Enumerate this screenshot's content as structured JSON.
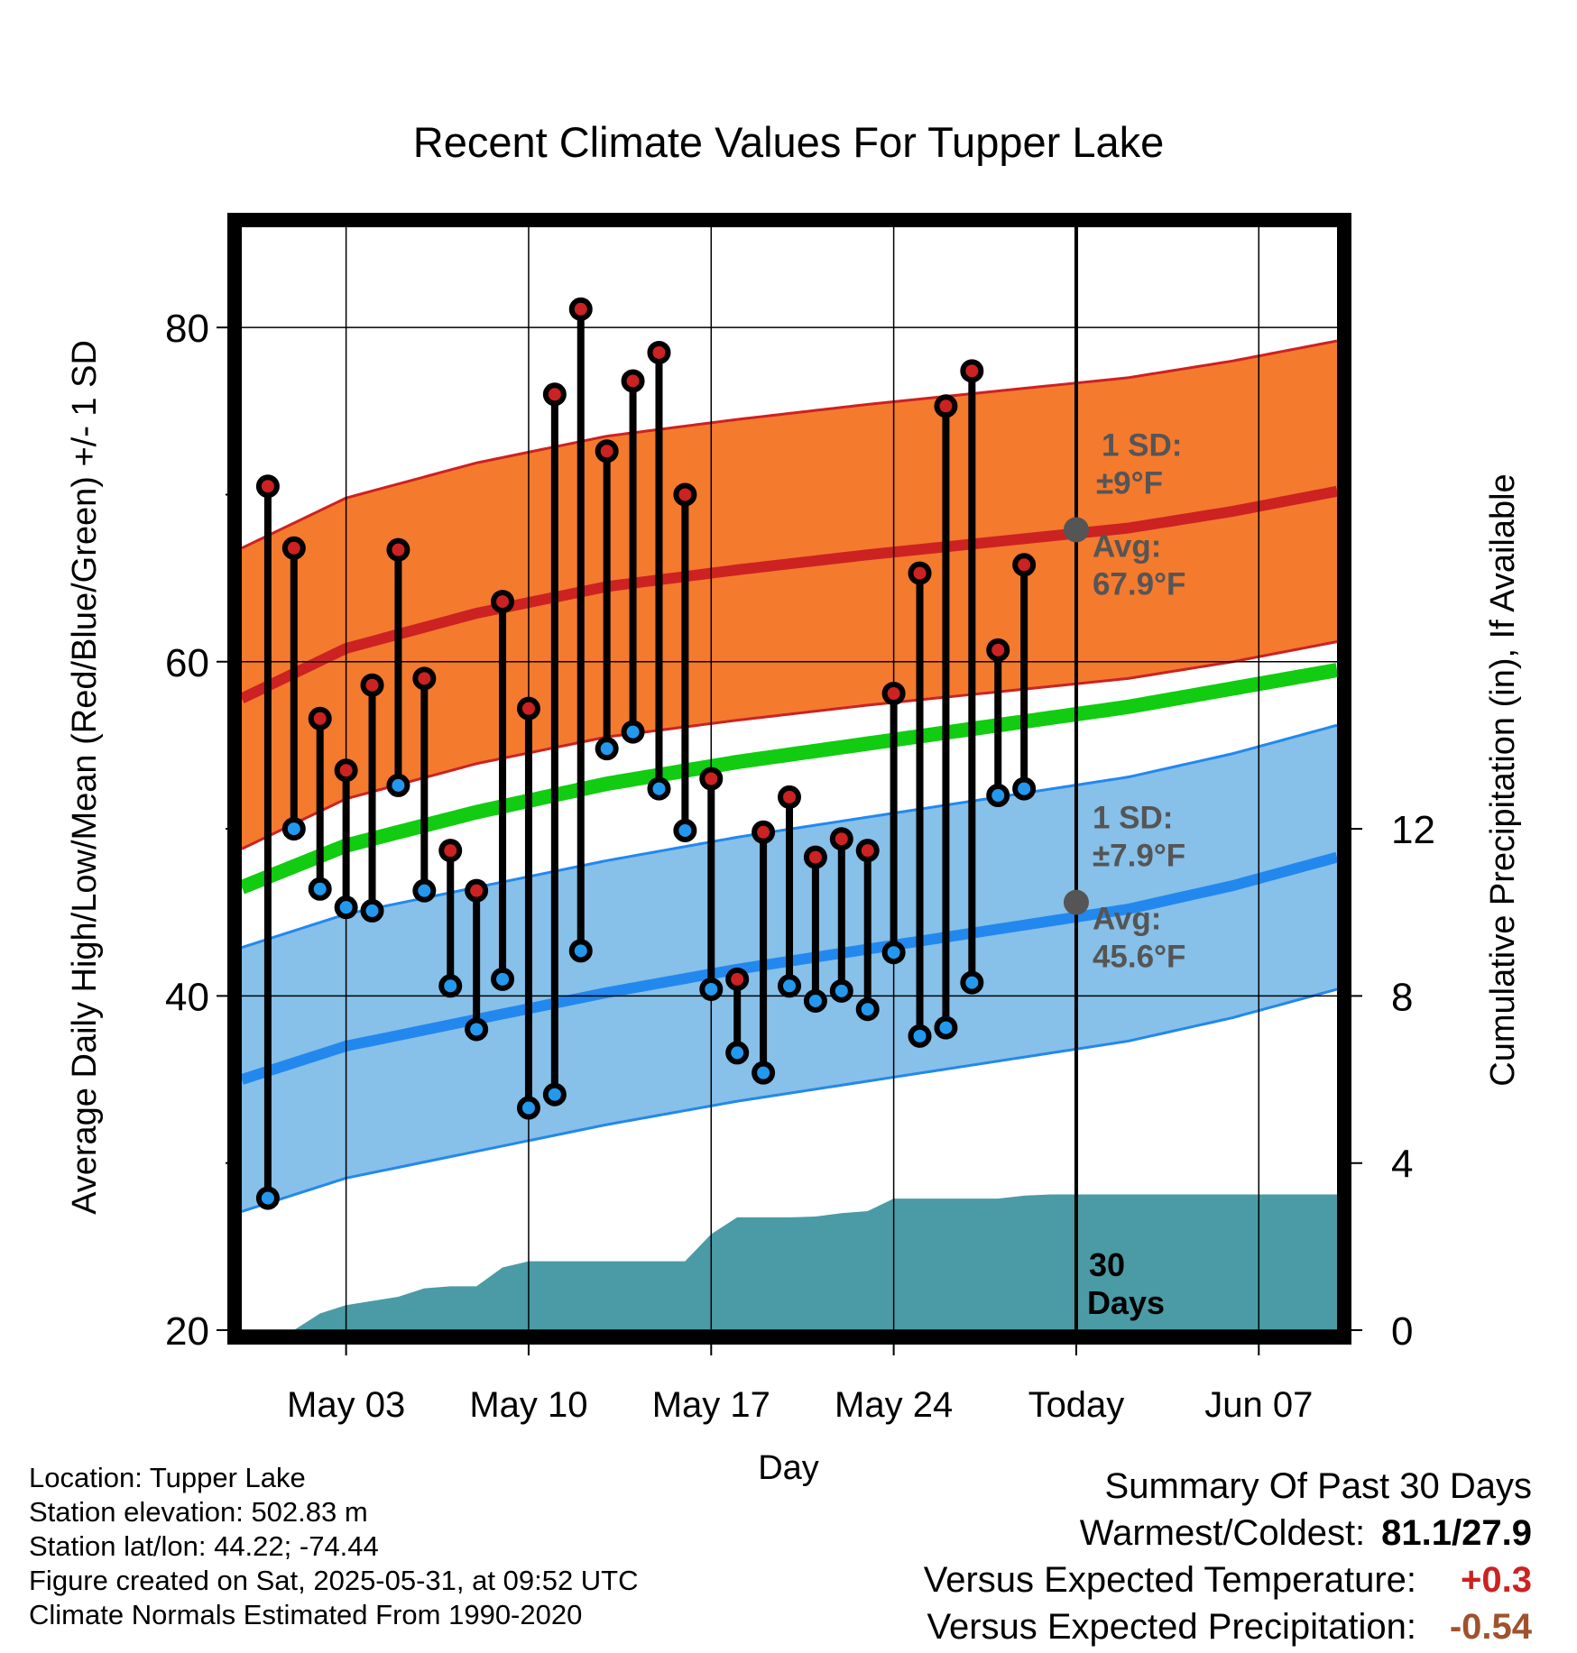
{
  "chart_data": {
    "type": "line",
    "title": "Recent Climate Values For Tupper Lake",
    "xlabel": "Day",
    "ylabel": "Average Daily High/Low/Mean (Red/Blue/Green) +/- 1 SD",
    "y2label": "Cumulative Precipitation (in), If Available",
    "ylim": [
      20,
      86
    ],
    "y2lim": [
      0,
      26.4
    ],
    "yticks": [
      20,
      40,
      60,
      80
    ],
    "y2ticks": [
      0,
      4,
      8,
      12
    ],
    "x_dates": [
      "Apr 29",
      "Apr 30",
      "May 01",
      "May 02",
      "May 03",
      "May 04",
      "May 05",
      "May 06",
      "May 07",
      "May 08",
      "May 09",
      "May 10",
      "May 11",
      "May 12",
      "May 13",
      "May 14",
      "May 15",
      "May 16",
      "May 17",
      "May 18",
      "May 19",
      "May 20",
      "May 21",
      "May 22",
      "May 23",
      "May 24",
      "May 25",
      "May 26",
      "May 27",
      "May 28",
      "May 29",
      "May 30",
      "May 31",
      "Jun 01",
      "Jun 02",
      "Jun 03",
      "Jun 04",
      "Jun 05",
      "Jun 06",
      "Jun 07",
      "Jun 08",
      "Jun 09",
      "Jun 10"
    ],
    "xticks": [
      {
        "label": "May 03",
        "date": "May 03"
      },
      {
        "label": "May 10",
        "date": "May 10"
      },
      {
        "label": "May 17",
        "date": "May 17"
      },
      {
        "label": "May 24",
        "date": "May 24"
      },
      {
        "label": "Today",
        "date": "May 31"
      },
      {
        "label": "Jun 07",
        "date": "Jun 07"
      }
    ],
    "today_date": "May 31",
    "today_label": "30\nDays",
    "series": [
      {
        "name": "High",
        "color": "#cc2222",
        "values": [
          null,
          70.5,
          66.8,
          56.6,
          53.5,
          58.6,
          66.7,
          59.0,
          48.7,
          46.3,
          63.6,
          57.2,
          76.0,
          81.1,
          72.6,
          76.8,
          78.5,
          70.0,
          53.0,
          41.0,
          49.8,
          51.9,
          48.3,
          49.4,
          48.7,
          58.1,
          65.3,
          75.3,
          77.4,
          60.7,
          65.8
        ]
      },
      {
        "name": "Low",
        "color": "#2299ee",
        "values": [
          null,
          27.9,
          50.0,
          46.4,
          45.3,
          45.1,
          52.6,
          46.3,
          40.6,
          38.0,
          41.0,
          33.3,
          34.1,
          42.7,
          54.8,
          55.8,
          52.4,
          49.9,
          40.4,
          36.6,
          35.4,
          40.6,
          39.7,
          40.3,
          39.2,
          42.6,
          37.6,
          38.1,
          40.8,
          52.0,
          52.4
        ]
      }
    ],
    "normal_high_avg": [
      57.8,
      60.8,
      62.9,
      64.5,
      65.5,
      66.4,
      67.2,
      68.0,
      69.0,
      70.2
    ],
    "normal_low_avg": [
      35.0,
      37.0,
      38.6,
      40.2,
      41.6,
      42.8,
      44.0,
      45.2,
      46.6,
      48.3
    ],
    "normal_mean": [
      46.5,
      49.0,
      51.0,
      52.7,
      54.0,
      55.1,
      56.2,
      57.3,
      58.4,
      59.5
    ],
    "normal_dates": [
      "Apr 29",
      "May 03",
      "May 08",
      "May 13",
      "May 18",
      "May 23",
      "May 28",
      "Jun 02",
      "Jun 06",
      "Jun 10"
    ],
    "high_sd": 9,
    "low_sd": 7.9,
    "precip_dates": [
      "Apr 29",
      "May 01",
      "May 02",
      "May 03",
      "May 04",
      "May 05",
      "May 06",
      "May 07",
      "May 08",
      "May 09",
      "May 10",
      "May 11",
      "May 16",
      "May 17",
      "May 18",
      "May 19",
      "May 20",
      "May 21",
      "May 22",
      "May 23",
      "May 24",
      "May 27",
      "May 28",
      "May 29",
      "May 30",
      "Jun 10"
    ],
    "precip_cum": [
      0,
      0,
      0.4,
      0.6,
      0.7,
      0.8,
      1.0,
      1.05,
      1.05,
      1.5,
      1.65,
      1.65,
      1.65,
      2.3,
      2.7,
      2.7,
      2.7,
      2.72,
      2.8,
      2.85,
      3.15,
      3.15,
      3.15,
      3.22,
      3.25,
      3.25
    ],
    "annotations": {
      "high_sd": [
        "1 SD:",
        "±9°F"
      ],
      "high_avg": [
        "Avg:",
        "67.9°F"
      ],
      "low_sd": [
        "1 SD:",
        "±7.9°F"
      ],
      "low_avg": [
        "Avg:",
        "45.6°F"
      ]
    },
    "today_high_avg": 67.9,
    "today_low_avg": 45.6,
    "colors": {
      "high_band": "#f47a2e",
      "high_line": "#cc2222",
      "mean_line": "#11cc11",
      "low_band": "#87c0e8",
      "low_line": "#2288ee",
      "precip_fill": "#4a9ba5",
      "marker_dot": "#555555",
      "annotation_text": "#555555"
    }
  },
  "footer": {
    "location": "Location: Tupper Lake",
    "elevation": "Station elevation: 502.83 m",
    "latlon": "Station lat/lon: 44.22; -74.44",
    "created": "Figure created on Sat, 2025-05-31, at 09:52 UTC",
    "normals": "Climate Normals Estimated From 1990-2020"
  },
  "summary": {
    "title": "Summary Of Past 30 Days",
    "warm_cold_label": "Warmest/Coldest:",
    "warm_cold_value": "81.1/27.9",
    "temp_label": "Versus Expected Temperature:",
    "temp_value": "+0.3",
    "temp_color": "#cc2222",
    "precip_label": "Versus Expected Precipitation:",
    "precip_value": "-0.54",
    "precip_color": "#a0522d"
  }
}
